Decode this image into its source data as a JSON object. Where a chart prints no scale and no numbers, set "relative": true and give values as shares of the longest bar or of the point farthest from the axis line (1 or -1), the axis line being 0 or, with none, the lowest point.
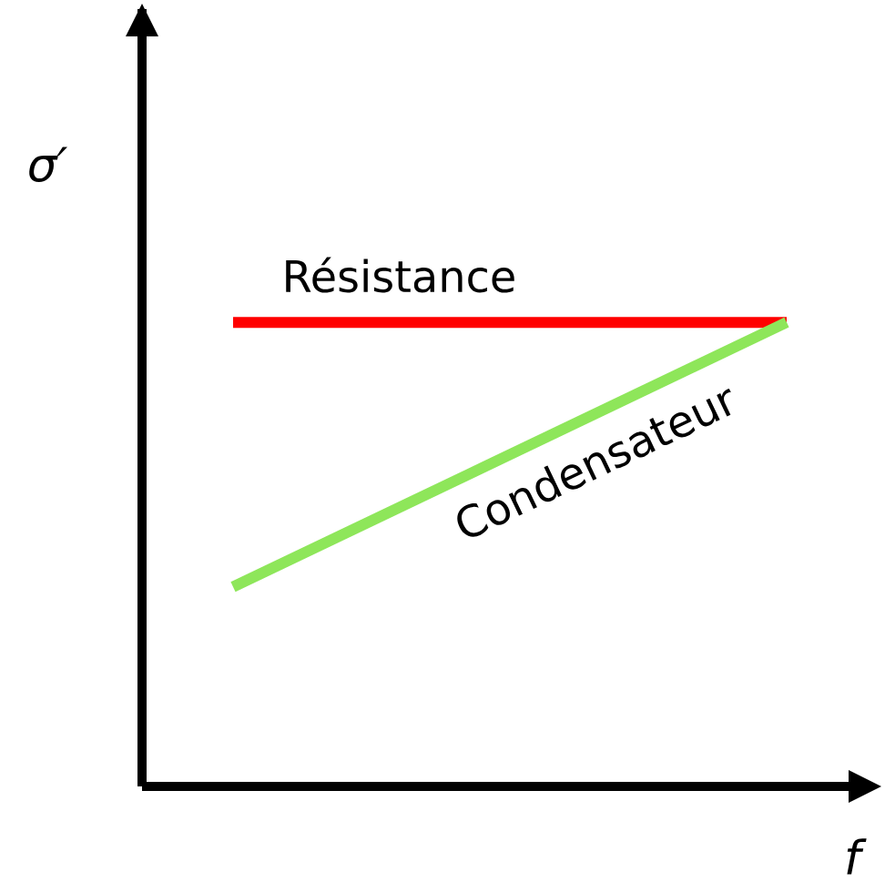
{
  "chart_data": {
    "type": "line",
    "relative": true,
    "xlabel": "f",
    "ylabel": "σ′",
    "categories": [
      null,
      null
    ],
    "series": [
      {
        "name": "Résistance",
        "color": "#ff0000",
        "values": [
          1,
          1
        ]
      },
      {
        "name": "Condensateur",
        "color": "#8ee65a",
        "values": [
          0.43,
          1
        ]
      }
    ]
  }
}
